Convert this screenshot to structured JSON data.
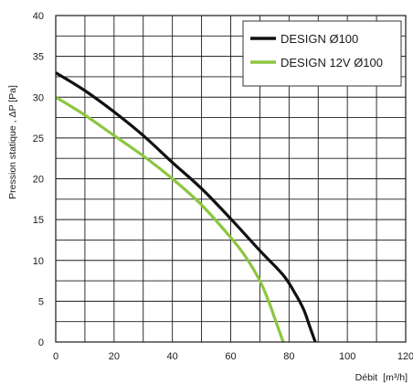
{
  "chart_data": {
    "type": "line",
    "title": "",
    "xlabel": "Débit",
    "xunit": "[m³/h]",
    "ylabel": "Pression statique , ΔP [Pa]",
    "xlim": [
      0,
      120
    ],
    "ylim": [
      0,
      40
    ],
    "x_ticks": [
      0,
      20,
      40,
      60,
      80,
      100,
      120
    ],
    "y_ticks": [
      0,
      5,
      10,
      15,
      20,
      25,
      30,
      35,
      40
    ],
    "x_gridlines": [
      0,
      10,
      20,
      30,
      40,
      50,
      60,
      70,
      80,
      90,
      100,
      110,
      120
    ],
    "y_gridlines": [
      0,
      2.5,
      5,
      7.5,
      10,
      12.5,
      15,
      17.5,
      20,
      22.5,
      25,
      27.5,
      30,
      32.5,
      35,
      37.5,
      40
    ],
    "grid": true,
    "legend_position": "top-right",
    "series": [
      {
        "name": "DESIGN Ø100",
        "color": "#111111",
        "x": [
          0,
          10,
          20,
          30,
          40,
          50,
          60,
          70,
          78,
          82,
          85,
          87,
          88,
          89
        ],
        "y": [
          33,
          30.8,
          28.2,
          25.3,
          22,
          18.8,
          15.1,
          11.2,
          8.2,
          6,
          4,
          2,
          1,
          0
        ]
      },
      {
        "name": "DESIGN 12V Ø100",
        "color": "#8cc63f",
        "x": [
          0,
          10,
          20,
          30,
          40,
          50,
          60,
          65,
          70,
          73,
          75,
          77,
          78
        ],
        "y": [
          30,
          27.8,
          25.3,
          22.8,
          20,
          16.8,
          12.8,
          10.5,
          7.5,
          5,
          3,
          1,
          0
        ]
      }
    ]
  }
}
